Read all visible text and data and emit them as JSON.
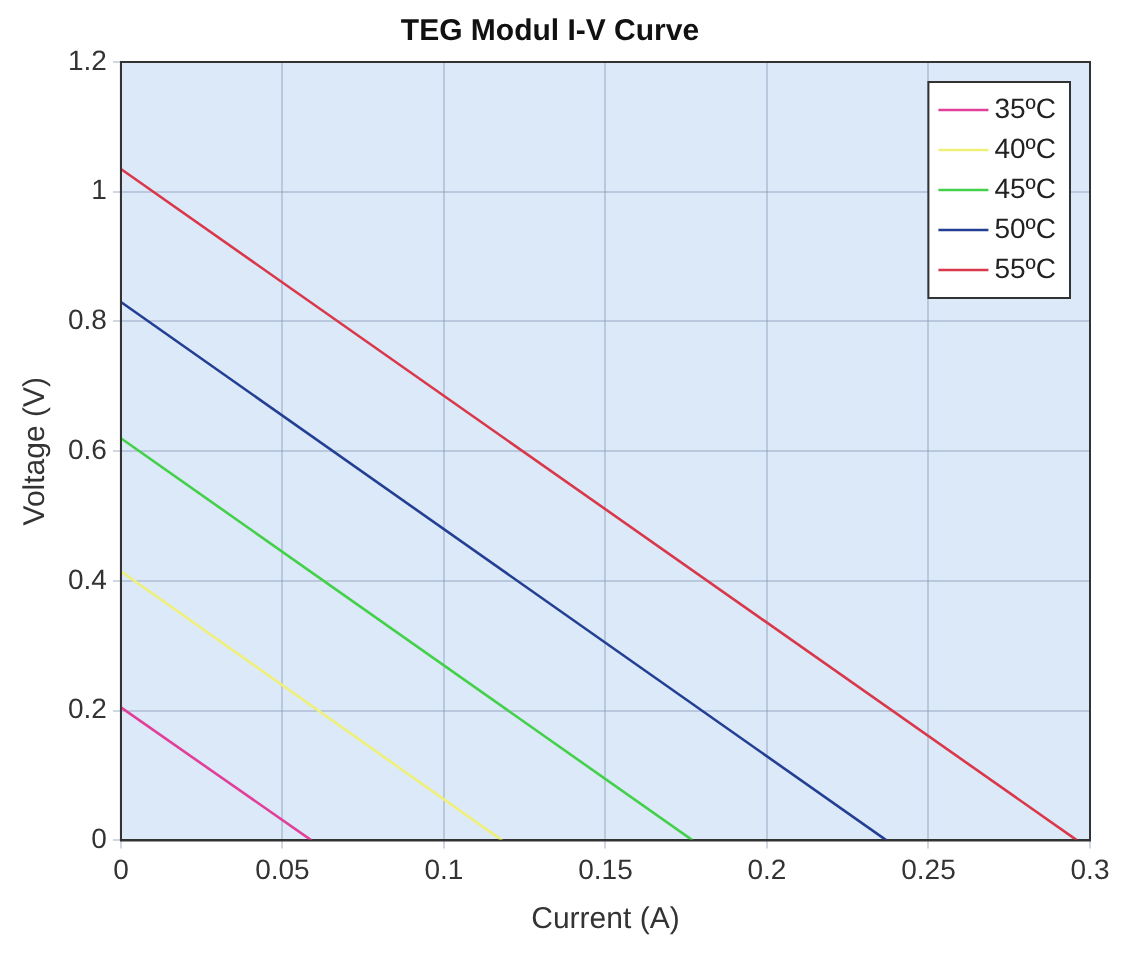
{
  "chart_data": {
    "type": "line",
    "title": "TEG Modul I-V Curve",
    "xlabel": "Current (A)",
    "ylabel": "Voltage (V)",
    "xlim": [
      0,
      0.3
    ],
    "xticks": [
      0,
      0.05,
      0.1,
      0.15,
      0.2,
      0.25,
      0.3
    ],
    "ylim": [
      0,
      1.2
    ],
    "yticks": [
      0,
      0.2,
      0.4,
      0.6,
      0.8,
      1,
      1.2
    ],
    "grid": true,
    "legend": "top right",
    "marker": "none",
    "line_style": "solid",
    "series": [
      {
        "name": "35ºC",
        "color": "#e0409a",
        "x": [
          0,
          0.059
        ],
        "values": [
          0.205,
          0
        ]
      },
      {
        "name": "40ºC",
        "color": "#eef07a",
        "x": [
          0,
          0.118
        ],
        "values": [
          0.415,
          0
        ]
      },
      {
        "name": "45ºC",
        "color": "#44d04a",
        "x": [
          0,
          0.177
        ],
        "values": [
          0.62,
          0
        ]
      },
      {
        "name": "50ºC",
        "color": "#223f94",
        "x": [
          0,
          0.237
        ],
        "values": [
          0.83,
          0
        ]
      },
      {
        "name": "55ºC",
        "color": "#d8384a",
        "x": [
          0,
          0.296
        ],
        "values": [
          1.035,
          0
        ]
      }
    ]
  }
}
